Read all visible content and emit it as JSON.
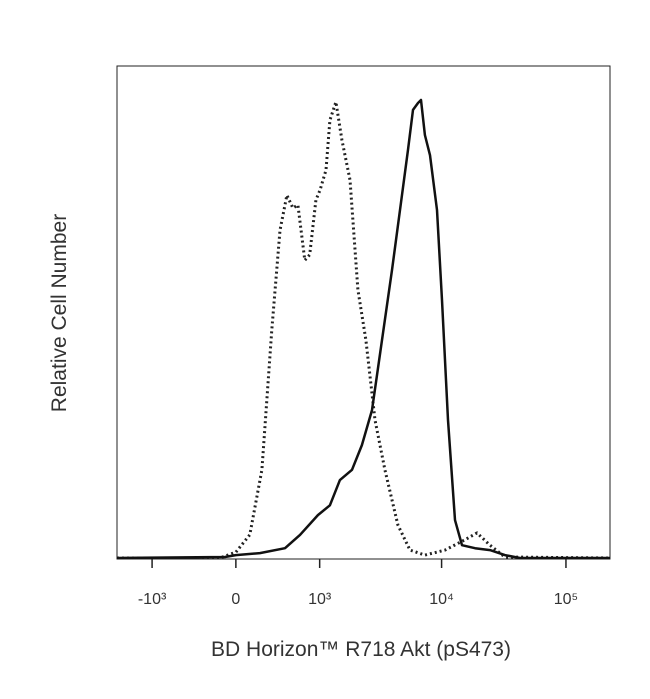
{
  "chart_data": {
    "type": "line",
    "xlabel": "BD Horizon™ R718 Akt (pS473)",
    "ylabel": "Relative Cell Number",
    "xscale": "biexponential",
    "xlim": [
      -1980,
      226000
    ],
    "ylim": [
      0,
      100
    ],
    "xticks": [
      {
        "value": -1000,
        "label": "-10³"
      },
      0,
      {
        "value": 1000,
        "label": "10³"
      },
      {
        "value": 10000,
        "label": "10⁴"
      },
      {
        "value": 100000,
        "label": "10⁵"
      }
    ],
    "series": [
      {
        "color": "#222222",
        "style": "dotted",
        "x": [
          -1980,
          -133,
          0,
          116,
          222,
          318,
          404,
          485,
          561,
          630,
          733,
          814,
          926,
          1006,
          1135,
          1227,
          1380,
          1549,
          1808,
          2102,
          2445,
          2899,
          3490,
          4449,
          5563,
          7344,
          10643,
          15407,
          19270,
          24509,
          32323,
          226000
        ],
        "values": [
          0.2,
          0.2,
          1.4,
          4.9,
          18.1,
          46.5,
          66.7,
          73.8,
          71.2,
          71.8,
          60.6,
          61.7,
          72.8,
          74.8,
          78.9,
          89.0,
          92.7,
          85.0,
          76.9,
          54.6,
          44.4,
          28.2,
          18.1,
          6.9,
          1.8,
          0.8,
          1.8,
          3.9,
          5.3,
          2.8,
          0.4,
          0.2
        ]
      },
      {
        "color": "#111111",
        "style": "solid",
        "x": [
          -1980,
          -91,
          0,
          204,
          462,
          662,
          964,
          1227,
          1490,
          1880,
          2268,
          2739,
          3303,
          3983,
          4618,
          5360,
          5883,
          6455,
          6824,
          7344,
          8063,
          9177,
          10070,
          11264,
          12823,
          14585,
          18559,
          24509,
          32323,
          42668,
          226000
        ],
        "values": [
          0.2,
          0.4,
          0.8,
          1.2,
          2.2,
          4.9,
          8.9,
          10.9,
          16.0,
          18.1,
          23.1,
          30.2,
          44.4,
          58.6,
          70.8,
          83.0,
          91.1,
          92.5,
          93.1,
          86.0,
          81.9,
          70.8,
          52.5,
          28.2,
          7.9,
          2.8,
          2.2,
          1.8,
          0.8,
          0.2,
          0.2
        ]
      }
    ]
  }
}
